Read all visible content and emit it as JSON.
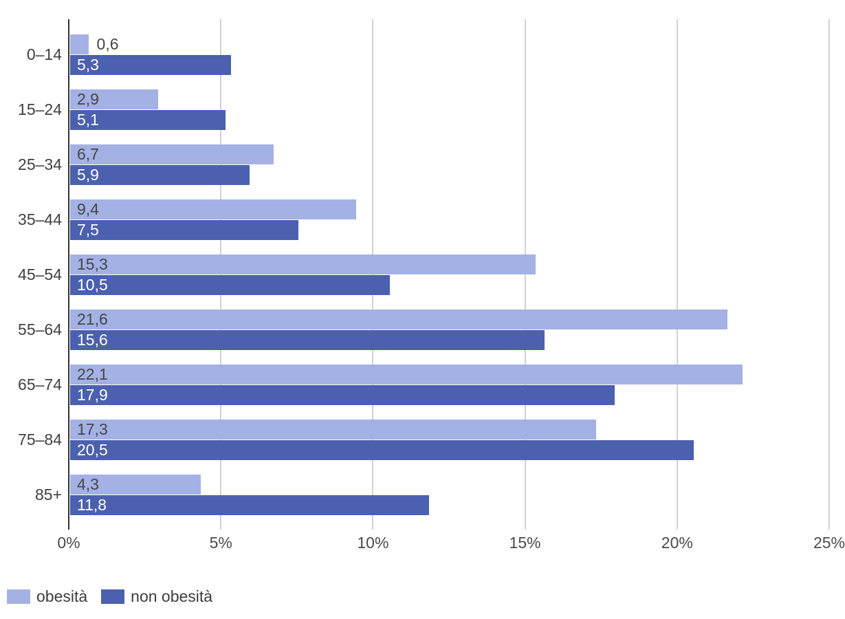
{
  "chart_data": {
    "type": "bar",
    "orientation": "horizontal",
    "title": "",
    "categories": [
      "0–14",
      "15–24",
      "25–34",
      "35–44",
      "45–54",
      "55–64",
      "65–74",
      "75–84",
      "85+"
    ],
    "series": [
      {
        "name": "obesità",
        "color": "#a3b1e4",
        "values": [
          0.6,
          2.9,
          6.7,
          9.4,
          15.3,
          21.6,
          22.1,
          17.3,
          4.3
        ],
        "labels": [
          "0,6",
          "2,9",
          "6,7",
          "9,4",
          "15,3",
          "21,6",
          "22,1",
          "17,3",
          "4,3"
        ]
      },
      {
        "name": "non obesità",
        "color": "#4b60ae",
        "values": [
          5.3,
          5.1,
          5.9,
          7.5,
          10.5,
          15.6,
          17.9,
          20.5,
          11.8
        ],
        "labels": [
          "5,3",
          "5,1",
          "5,9",
          "7,5",
          "10,5",
          "15,6",
          "17,9",
          "20,5",
          "11,8"
        ]
      }
    ],
    "x_axis": {
      "ticks": [
        "0%",
        "5%",
        "10%",
        "15%",
        "20%",
        "25%"
      ],
      "tick_values": [
        0,
        5,
        10,
        15,
        20,
        25
      ],
      "min": 0,
      "max": 25
    },
    "y_axis": {
      "label": ""
    },
    "legend": {
      "position": "bottom-left",
      "entries": [
        "obesità",
        "non obesità"
      ]
    },
    "grid": true,
    "value_label_colors": {
      "inside_light": "#454545",
      "inside_dark": "#ffffff",
      "outside": "#454545"
    },
    "axis_color": "#333333",
    "gridline_color": "#d2d2d2"
  }
}
